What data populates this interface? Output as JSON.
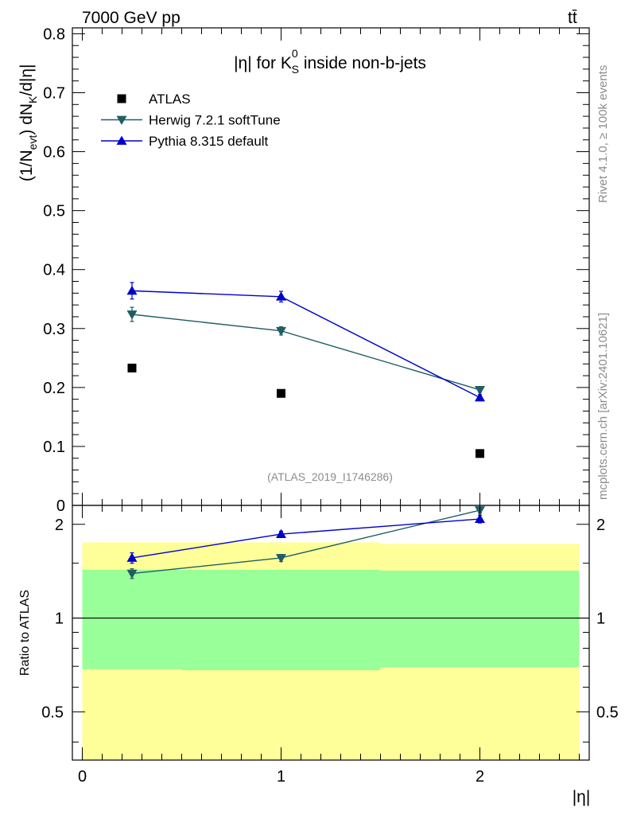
{
  "header": {
    "energy_label": "7000 GeV pp",
    "process_label": "tt̄",
    "title": "|η| for K⁰S inside non-b-jets",
    "title_main": "|η| for K",
    "title_sup": "0",
    "title_sub": "S",
    "title_tail": " inside non-b-jets",
    "analysis_id": "(ATLAS_2019_I1746286)",
    "side_label_rivet": "Rivet 4.1.0, ≥ 100k events",
    "side_label_mcplots": "mcplots.cern.ch [arXiv:2401.10621]"
  },
  "colors": {
    "atlas": "#000000",
    "herwig": "#1f5e63",
    "pythia": "#0000cc",
    "band_inner": "#99ff99",
    "band_outer": "#ffff99"
  },
  "chart_data": [
    {
      "type": "scatter",
      "title": "|η| for K⁰S inside non-b-jets",
      "xlabel": "|η|",
      "ylabel": "(1/N_evt) dN_K/d|η|",
      "xlim": [
        -0.05,
        2.55
      ],
      "ylim": [
        0,
        0.81
      ],
      "yticks": [
        0,
        0.1,
        0.2,
        0.3,
        0.4,
        0.5,
        0.6,
        0.7,
        0.8
      ],
      "ytick_labels": [
        "0",
        "0.1",
        "0.2",
        "0.3",
        "0.4",
        "0.5",
        "0.6",
        "0.7",
        "0.8"
      ],
      "legend_position": "top-left",
      "series": [
        {
          "name": "ATLAS",
          "marker": "square",
          "line": false,
          "x": [
            0.25,
            1.0,
            2.0
          ],
          "values": [
            0.233,
            0.19,
            0.088
          ],
          "err": [
            0.002,
            0.002,
            0.002
          ]
        },
        {
          "name": "Herwig 7.2.1 softTune",
          "marker": "triangle-down",
          "line": true,
          "x": [
            0.25,
            1.0,
            2.0
          ],
          "values": [
            0.324,
            0.296,
            0.196
          ],
          "err": [
            0.012,
            0.007,
            0.004
          ]
        },
        {
          "name": "Pythia 8.315 default",
          "marker": "triangle-up",
          "line": true,
          "x": [
            0.25,
            1.0,
            2.0
          ],
          "values": [
            0.364,
            0.354,
            0.183
          ],
          "err": [
            0.014,
            0.009,
            0.005
          ]
        }
      ]
    },
    {
      "type": "scatter",
      "title": "",
      "xlabel": "|η|",
      "ylabel": "Ratio to ATLAS",
      "xlim": [
        -0.05,
        2.55
      ],
      "ylim": [
        0.35,
        2.3
      ],
      "yscale": "log",
      "xticks": [
        0,
        1,
        2
      ],
      "xtick_labels": [
        "0",
        "1",
        "2"
      ],
      "yticks": [
        0.5,
        1,
        2
      ],
      "ytick_labels": [
        "0.5",
        "1",
        "2"
      ],
      "bands": [
        {
          "x_from": 0.0,
          "x_to": 0.5,
          "inner": [
            0.685,
            1.43
          ],
          "outer": [
            0.35,
            1.75
          ]
        },
        {
          "x_from": 0.5,
          "x_to": 1.5,
          "inner": [
            0.68,
            1.43
          ],
          "outer": [
            0.35,
            1.75
          ]
        },
        {
          "x_from": 1.5,
          "x_to": 2.5,
          "inner": [
            0.695,
            1.42
          ],
          "outer": [
            0.35,
            1.73
          ]
        }
      ],
      "series": [
        {
          "name": "Herwig 7.2.1 softTune",
          "marker": "triangle-down",
          "x": [
            0.25,
            1.0,
            2.0
          ],
          "values": [
            1.39,
            1.56,
            2.22
          ],
          "err": [
            0.05,
            0.04,
            0.05
          ]
        },
        {
          "name": "Pythia 8.315 default",
          "marker": "triangle-up",
          "x": [
            0.25,
            1.0,
            2.0
          ],
          "values": [
            1.56,
            1.86,
            2.08
          ],
          "err": [
            0.06,
            0.04,
            0.06
          ]
        }
      ]
    }
  ]
}
